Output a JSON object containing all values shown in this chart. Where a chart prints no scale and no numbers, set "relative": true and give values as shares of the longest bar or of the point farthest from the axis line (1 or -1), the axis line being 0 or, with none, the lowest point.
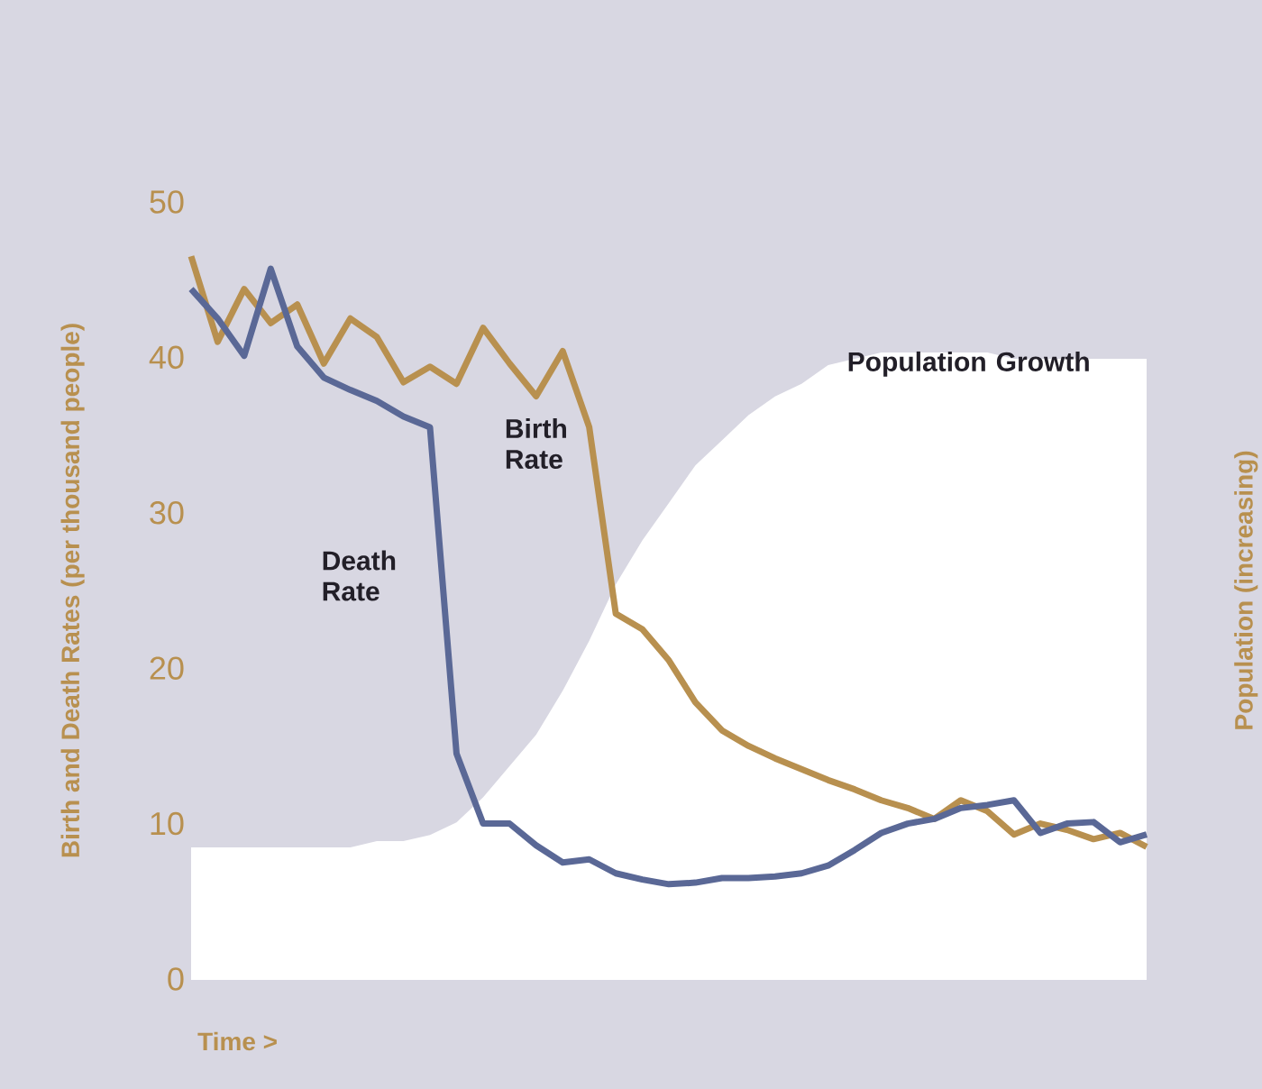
{
  "chart_data": [
    {
      "type": "line",
      "xlabel": "Time >",
      "ylabel": "Birth and Death Rates (per thousand people)",
      "categories": [
        null,
        null,
        null,
        null,
        null,
        null,
        null,
        null,
        null,
        null,
        null,
        null,
        null,
        null,
        null,
        null,
        null,
        null,
        null,
        null,
        null,
        null,
        null,
        null,
        null,
        null,
        null,
        null,
        null,
        null,
        null,
        null,
        null,
        null,
        null,
        null,
        null
      ],
      "ylim": [
        0,
        50
      ],
      "yticks": [
        0,
        10,
        20,
        30,
        40,
        50
      ],
      "tick_labels": "y",
      "legend": false,
      "marker": "none",
      "series": [
        {
          "name": "Birth Rate",
          "color": "#b8904f",
          "values": [
            46.5,
            41,
            44.4,
            42.2,
            43.4,
            39.6,
            42.5,
            41.3,
            38.4,
            39.4,
            38.3,
            41.9,
            39.6,
            37.5,
            40.4,
            35.5,
            23.5,
            22.5,
            20.5,
            17.8,
            16,
            15,
            14.2,
            13.5,
            12.8,
            12.2,
            11.5,
            11,
            10.3,
            11.5,
            10.8,
            9.3,
            10,
            9.6,
            9,
            9.4,
            8.5
          ]
        },
        {
          "name": "Death Rate",
          "color": "#5a6896",
          "values": [
            44.4,
            42.5,
            40.1,
            45.7,
            40.7,
            38.7,
            37.9,
            37.2,
            36.2,
            35.5,
            14.5,
            10,
            10,
            8.6,
            7.5,
            7.7,
            6.8,
            6.4,
            6.1,
            6.2,
            6.5,
            6.5,
            6.6,
            6.8,
            7.3,
            8.3,
            9.4,
            10,
            10.3,
            11,
            11.2,
            11.5,
            9.4,
            10,
            10.1,
            8.8,
            9.3
          ]
        }
      ]
    },
    {
      "type": "area",
      "ylabel": "Population (increasing)",
      "relative": true,
      "tick_labels": false,
      "legend": false,
      "categories": [
        null,
        null,
        null,
        null,
        null,
        null,
        null,
        null,
        null,
        null,
        null,
        null,
        null,
        null,
        null,
        null,
        null,
        null,
        null,
        null,
        null,
        null,
        null,
        null,
        null,
        null,
        null,
        null,
        null,
        null,
        null,
        null,
        null,
        null,
        null,
        null,
        null
      ],
      "series": [
        {
          "name": "Population Growth",
          "color": "#ffffff",
          "values": [
            0.21,
            0.21,
            0.21,
            0.21,
            0.21,
            0.21,
            0.21,
            0.22,
            0.22,
            0.23,
            0.25,
            0.29,
            0.34,
            0.39,
            0.46,
            0.54,
            0.63,
            0.7,
            0.76,
            0.82,
            0.86,
            0.9,
            0.93,
            0.95,
            0.98,
            0.99,
            1.0,
            1.0,
            1.0,
            1.0,
            1.0,
            0.99,
            0.99,
            0.99,
            0.99,
            0.99,
            0.99
          ]
        }
      ]
    }
  ]
}
